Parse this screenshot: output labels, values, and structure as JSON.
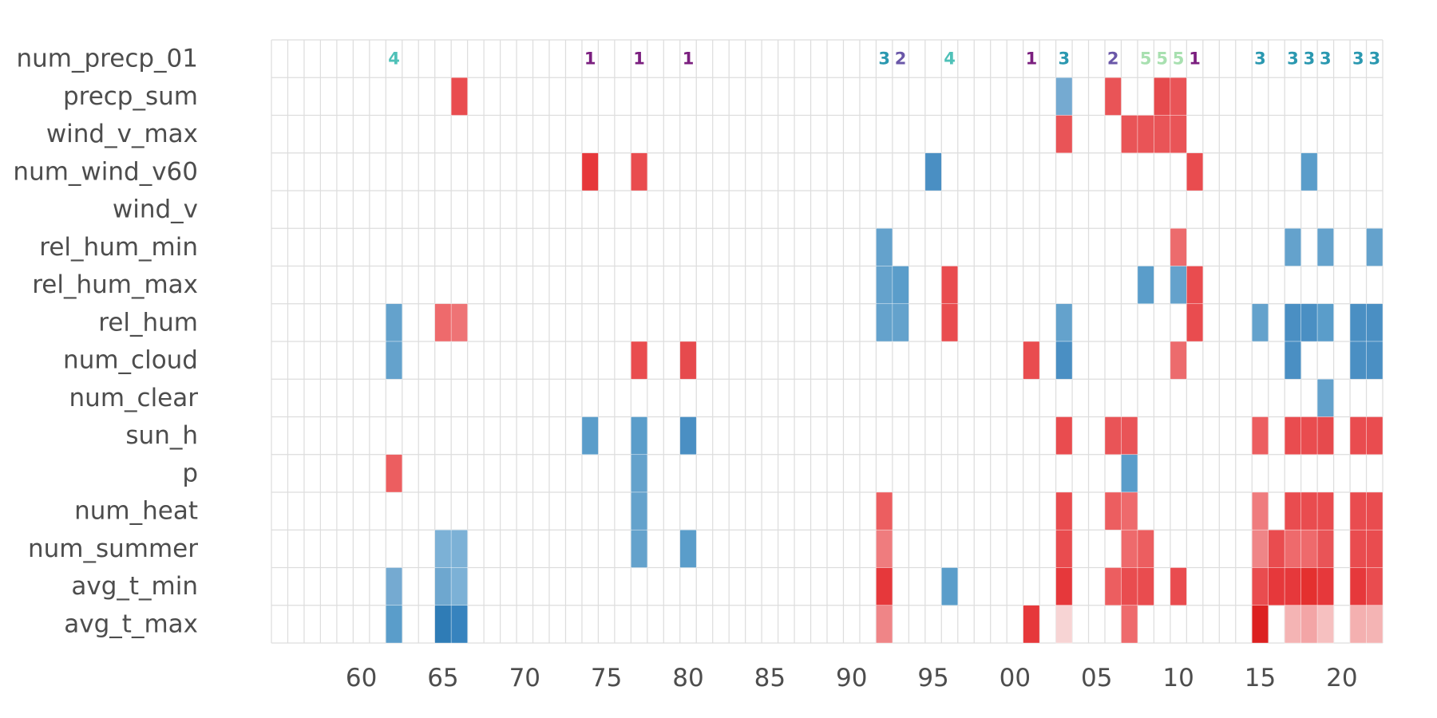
{
  "chart_data": {
    "type": "heatmap",
    "title": "",
    "rows": [
      "num_precp_01",
      "precp_sum",
      "wind_v_max",
      "num_wind_v60",
      "wind_v",
      "rel_hum_min",
      "rel_hum_max",
      "rel_hum",
      "num_cloud",
      "num_clear",
      "sun_h",
      "p",
      "num_heat",
      "num_summer",
      "avg_t_min",
      "avg_t_max"
    ],
    "x_tick_labels": [
      "60",
      "65",
      "70",
      "75",
      "80",
      "85",
      "90",
      "95",
      "00",
      "05",
      "10",
      "15",
      "20"
    ],
    "x_tick_years": [
      1960,
      1965,
      1970,
      1975,
      1980,
      1985,
      1990,
      1995,
      2000,
      2005,
      2010,
      2015,
      2020
    ],
    "year_range": [
      1955,
      2022
    ],
    "grid": true,
    "label_row": {
      "row": "num_precp_01",
      "labels": [
        {
          "year": 1962,
          "label": "4",
          "color": "#4fc1b8"
        },
        {
          "year": 1974,
          "label": "1",
          "color": "#7b1f7f"
        },
        {
          "year": 1977,
          "label": "1",
          "color": "#7b1f7f"
        },
        {
          "year": 1980,
          "label": "1",
          "color": "#7b1f7f"
        },
        {
          "year": 1992,
          "label": "3",
          "color": "#2a98b0"
        },
        {
          "year": 1993,
          "label": "2",
          "color": "#6a57a8"
        },
        {
          "year": 1996,
          "label": "4",
          "color": "#4fc1b8"
        },
        {
          "year": 2001,
          "label": "1",
          "color": "#7b1f7f"
        },
        {
          "year": 2003,
          "label": "3",
          "color": "#2a98b0"
        },
        {
          "year": 2006,
          "label": "2",
          "color": "#6a57a8"
        },
        {
          "year": 2008,
          "label": "5",
          "color": "#a8e0b0"
        },
        {
          "year": 2009,
          "label": "5",
          "color": "#a8e0b0"
        },
        {
          "year": 2010,
          "label": "5",
          "color": "#a8e0b0"
        },
        {
          "year": 2011,
          "label": "1",
          "color": "#7b1f7f"
        },
        {
          "year": 2015,
          "label": "3",
          "color": "#2a98b0"
        },
        {
          "year": 2017,
          "label": "3",
          "color": "#2a98b0"
        },
        {
          "year": 2018,
          "label": "3",
          "color": "#2a98b0"
        },
        {
          "year": 2019,
          "label": "3",
          "color": "#2a98b0"
        },
        {
          "year": 2021,
          "label": "3",
          "color": "#2a98b0"
        },
        {
          "year": 2022,
          "label": "3",
          "color": "#2a98b0"
        }
      ]
    },
    "cells": [
      {
        "row": "precp_sum",
        "year": 1966,
        "color": "#e94c4f"
      },
      {
        "row": "precp_sum",
        "year": 2003,
        "color": "#75aad1"
      },
      {
        "row": "precp_sum",
        "year": 2006,
        "color": "#e95457"
      },
      {
        "row": "precp_sum",
        "year": 2009,
        "color": "#e64a4d"
      },
      {
        "row": "precp_sum",
        "year": 2010,
        "color": "#e95457"
      },
      {
        "row": "wind_v_max",
        "year": 2003,
        "color": "#e95457"
      },
      {
        "row": "wind_v_max",
        "year": 2007,
        "color": "#e95457"
      },
      {
        "row": "wind_v_max",
        "year": 2008,
        "color": "#e95457"
      },
      {
        "row": "wind_v_max",
        "year": 2009,
        "color": "#e95457"
      },
      {
        "row": "wind_v_max",
        "year": 2010,
        "color": "#e95457"
      },
      {
        "row": "num_wind_v60",
        "year": 1974,
        "color": "#e6383b"
      },
      {
        "row": "num_wind_v60",
        "year": 1977,
        "color": "#e94c4f"
      },
      {
        "row": "num_wind_v60",
        "year": 1995,
        "color": "#4a8fc3"
      },
      {
        "row": "num_wind_v60",
        "year": 2011,
        "color": "#e94c4f"
      },
      {
        "row": "num_wind_v60",
        "year": 2018,
        "color": "#5a9dca"
      },
      {
        "row": "rel_hum_min",
        "year": 1992,
        "color": "#64a2cc"
      },
      {
        "row": "rel_hum_min",
        "year": 2010,
        "color": "#ec6b6d"
      },
      {
        "row": "rel_hum_min",
        "year": 2017,
        "color": "#64a2cc"
      },
      {
        "row": "rel_hum_min",
        "year": 2019,
        "color": "#64a2cc"
      },
      {
        "row": "rel_hum_min",
        "year": 2022,
        "color": "#64a2cc"
      },
      {
        "row": "rel_hum_max",
        "year": 1992,
        "color": "#64a2cc"
      },
      {
        "row": "rel_hum_max",
        "year": 1993,
        "color": "#5a9dca"
      },
      {
        "row": "rel_hum_max",
        "year": 1996,
        "color": "#e94c4f"
      },
      {
        "row": "rel_hum_max",
        "year": 2008,
        "color": "#5a9dca"
      },
      {
        "row": "rel_hum_max",
        "year": 2010,
        "color": "#64a2cc"
      },
      {
        "row": "rel_hum_max",
        "year": 2011,
        "color": "#e94c4f"
      },
      {
        "row": "rel_hum",
        "year": 1962,
        "color": "#64a2cc"
      },
      {
        "row": "rel_hum",
        "year": 1965,
        "color": "#ee6a6c"
      },
      {
        "row": "rel_hum",
        "year": 1966,
        "color": "#ee7375"
      },
      {
        "row": "rel_hum",
        "year": 1992,
        "color": "#64a2cc"
      },
      {
        "row": "rel_hum",
        "year": 1993,
        "color": "#64a2cc"
      },
      {
        "row": "rel_hum",
        "year": 1996,
        "color": "#e94c4f"
      },
      {
        "row": "rel_hum",
        "year": 2003,
        "color": "#64a2cc"
      },
      {
        "row": "rel_hum",
        "year": 2011,
        "color": "#e94c4f"
      },
      {
        "row": "rel_hum",
        "year": 2015,
        "color": "#64a2cc"
      },
      {
        "row": "rel_hum",
        "year": 2017,
        "color": "#4a8fc3"
      },
      {
        "row": "rel_hum",
        "year": 2018,
        "color": "#4a8fc3"
      },
      {
        "row": "rel_hum",
        "year": 2019,
        "color": "#5a9dca"
      },
      {
        "row": "rel_hum",
        "year": 2021,
        "color": "#4a8fc3"
      },
      {
        "row": "rel_hum",
        "year": 2022,
        "color": "#4a8fc3"
      },
      {
        "row": "num_cloud",
        "year": 1962,
        "color": "#64a2cc"
      },
      {
        "row": "num_cloud",
        "year": 1977,
        "color": "#e94c4f"
      },
      {
        "row": "num_cloud",
        "year": 1980,
        "color": "#e64a4d"
      },
      {
        "row": "num_cloud",
        "year": 2001,
        "color": "#e94c4f"
      },
      {
        "row": "num_cloud",
        "year": 2003,
        "color": "#4a8fc3"
      },
      {
        "row": "num_cloud",
        "year": 2010,
        "color": "#ec6b6d"
      },
      {
        "row": "num_cloud",
        "year": 2017,
        "color": "#4a8fc3"
      },
      {
        "row": "num_cloud",
        "year": 2021,
        "color": "#4a8fc3"
      },
      {
        "row": "num_cloud",
        "year": 2022,
        "color": "#4a8fc3"
      },
      {
        "row": "num_clear",
        "year": 2019,
        "color": "#64a2cc"
      },
      {
        "row": "sun_h",
        "year": 1974,
        "color": "#5a9dca"
      },
      {
        "row": "sun_h",
        "year": 1977,
        "color": "#5a9dca"
      },
      {
        "row": "sun_h",
        "year": 1980,
        "color": "#4a8fc3"
      },
      {
        "row": "sun_h",
        "year": 2003,
        "color": "#e94c4f"
      },
      {
        "row": "sun_h",
        "year": 2006,
        "color": "#e95457"
      },
      {
        "row": "sun_h",
        "year": 2007,
        "color": "#e95457"
      },
      {
        "row": "sun_h",
        "year": 2015,
        "color": "#ec5e60"
      },
      {
        "row": "sun_h",
        "year": 2017,
        "color": "#e94c4f"
      },
      {
        "row": "sun_h",
        "year": 2018,
        "color": "#e94c4f"
      },
      {
        "row": "sun_h",
        "year": 2019,
        "color": "#e64a4d"
      },
      {
        "row": "sun_h",
        "year": 2021,
        "color": "#e94c4f"
      },
      {
        "row": "sun_h",
        "year": 2022,
        "color": "#e94c4f"
      },
      {
        "row": "p",
        "year": 1962,
        "color": "#ec5e60"
      },
      {
        "row": "p",
        "year": 1977,
        "color": "#64a2cc"
      },
      {
        "row": "p",
        "year": 2007,
        "color": "#5a9dca"
      },
      {
        "row": "num_heat",
        "year": 1977,
        "color": "#64a2cc"
      },
      {
        "row": "num_heat",
        "year": 1992,
        "color": "#ec5e60"
      },
      {
        "row": "num_heat",
        "year": 2003,
        "color": "#e94c4f"
      },
      {
        "row": "num_heat",
        "year": 2006,
        "color": "#ec5e60"
      },
      {
        "row": "num_heat",
        "year": 2007,
        "color": "#ee6a6c"
      },
      {
        "row": "num_heat",
        "year": 2015,
        "color": "#ef7c7e"
      },
      {
        "row": "num_heat",
        "year": 2017,
        "color": "#e94c4f"
      },
      {
        "row": "num_heat",
        "year": 2018,
        "color": "#e94c4f"
      },
      {
        "row": "num_heat",
        "year": 2019,
        "color": "#e94c4f"
      },
      {
        "row": "num_heat",
        "year": 2021,
        "color": "#e94c4f"
      },
      {
        "row": "num_heat",
        "year": 2022,
        "color": "#e94c4f"
      },
      {
        "row": "num_summer",
        "year": 1965,
        "color": "#7cb1d6"
      },
      {
        "row": "num_summer",
        "year": 1966,
        "color": "#7cb1d6"
      },
      {
        "row": "num_summer",
        "year": 1977,
        "color": "#64a2cc"
      },
      {
        "row": "num_summer",
        "year": 1980,
        "color": "#5a9dca"
      },
      {
        "row": "num_summer",
        "year": 1992,
        "color": "#ef7c7e"
      },
      {
        "row": "num_summer",
        "year": 2003,
        "color": "#e94c4f"
      },
      {
        "row": "num_summer",
        "year": 2007,
        "color": "#ee6a6c"
      },
      {
        "row": "num_summer",
        "year": 2008,
        "color": "#ec5e60"
      },
      {
        "row": "num_summer",
        "year": 2015,
        "color": "#ef8587"
      },
      {
        "row": "num_summer",
        "year": 2016,
        "color": "#e94c4f"
      },
      {
        "row": "num_summer",
        "year": 2017,
        "color": "#ee6a6c"
      },
      {
        "row": "num_summer",
        "year": 2018,
        "color": "#ee6a6c"
      },
      {
        "row": "num_summer",
        "year": 2019,
        "color": "#e95457"
      },
      {
        "row": "num_summer",
        "year": 2021,
        "color": "#e94c4f"
      },
      {
        "row": "num_summer",
        "year": 2022,
        "color": "#e94c4f"
      },
      {
        "row": "avg_t_min",
        "year": 1962,
        "color": "#75aad1"
      },
      {
        "row": "avg_t_min",
        "year": 1965,
        "color": "#6ea7cf"
      },
      {
        "row": "avg_t_min",
        "year": 1966,
        "color": "#7cb1d6"
      },
      {
        "row": "avg_t_min",
        "year": 1992,
        "color": "#e6383b"
      },
      {
        "row": "avg_t_min",
        "year": 1996,
        "color": "#5a9dca"
      },
      {
        "row": "avg_t_min",
        "year": 2003,
        "color": "#e6383b"
      },
      {
        "row": "avg_t_min",
        "year": 2006,
        "color": "#ec5e60"
      },
      {
        "row": "avg_t_min",
        "year": 2007,
        "color": "#e94c4f"
      },
      {
        "row": "avg_t_min",
        "year": 2008,
        "color": "#e94c4f"
      },
      {
        "row": "avg_t_min",
        "year": 2010,
        "color": "#e94c4f"
      },
      {
        "row": "avg_t_min",
        "year": 2015,
        "color": "#e94c4f"
      },
      {
        "row": "avg_t_min",
        "year": 2016,
        "color": "#e6383b"
      },
      {
        "row": "avg_t_min",
        "year": 2017,
        "color": "#e6383b"
      },
      {
        "row": "avg_t_min",
        "year": 2018,
        "color": "#e4302f"
      },
      {
        "row": "avg_t_min",
        "year": 2019,
        "color": "#e6383b"
      },
      {
        "row": "avg_t_min",
        "year": 2021,
        "color": "#e6383b"
      },
      {
        "row": "avg_t_min",
        "year": 2022,
        "color": "#e94c4f"
      },
      {
        "row": "avg_t_max",
        "year": 1962,
        "color": "#5a9dca"
      },
      {
        "row": "avg_t_max",
        "year": 1965,
        "color": "#2f7cb6"
      },
      {
        "row": "avg_t_max",
        "year": 1966,
        "color": "#3783be"
      },
      {
        "row": "avg_t_max",
        "year": 1992,
        "color": "#ef8587"
      },
      {
        "row": "avg_t_max",
        "year": 2001,
        "color": "#e6383b"
      },
      {
        "row": "avg_t_max",
        "year": 2003,
        "color": "#f7d4d4"
      },
      {
        "row": "avg_t_max",
        "year": 2007,
        "color": "#ee6a6c"
      },
      {
        "row": "avg_t_max",
        "year": 2015,
        "color": "#dc2020"
      },
      {
        "row": "avg_t_max",
        "year": 2017,
        "color": "#f4b4b4"
      },
      {
        "row": "avg_t_max",
        "year": 2018,
        "color": "#f3a5a6"
      },
      {
        "row": "avg_t_max",
        "year": 2019,
        "color": "#f6c0c0"
      },
      {
        "row": "avg_t_max",
        "year": 2021,
        "color": "#f4b0b0"
      },
      {
        "row": "avg_t_max",
        "year": 2022,
        "color": "#f4b4b4"
      }
    ]
  }
}
